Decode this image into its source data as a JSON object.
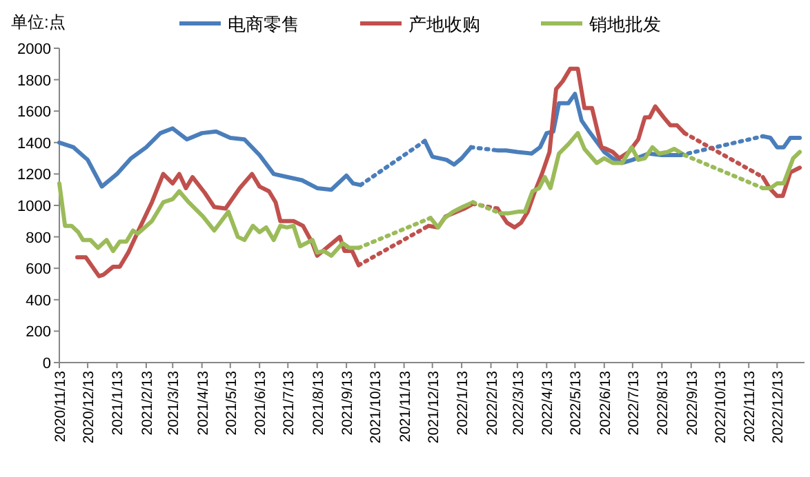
{
  "chart_data": {
    "type": "line",
    "annotations": [
      "单位:点"
    ],
    "xlim": [
      "2020-11-13",
      "2023-01-11"
    ],
    "xticks": [
      {
        "value": "2020-11-13",
        "label": "2020/11/13"
      },
      {
        "value": "2020-12-13",
        "label": "2020/12/13"
      },
      {
        "value": "2021-01-13",
        "label": "2021/1/13"
      },
      {
        "value": "2021-02-13",
        "label": "2021/2/13"
      },
      {
        "value": "2021-03-13",
        "label": "2021/3/13"
      },
      {
        "value": "2021-04-13",
        "label": "2021/4/13"
      },
      {
        "value": "2021-05-13",
        "label": "2021/5/13"
      },
      {
        "value": "2021-06-13",
        "label": "2021/6/13"
      },
      {
        "value": "2021-07-13",
        "label": "2021/7/13"
      },
      {
        "value": "2021-08-13",
        "label": "2021/8/13"
      },
      {
        "value": "2021-09-13",
        "label": "2021/9/13"
      },
      {
        "value": "2021-10-13",
        "label": "2021/10/13"
      },
      {
        "value": "2021-11-13",
        "label": "2021/11/13"
      },
      {
        "value": "2021-12-13",
        "label": "2021/12/13"
      },
      {
        "value": "2022-01-13",
        "label": "2022/1/13"
      },
      {
        "value": "2022-02-13",
        "label": "2022/2/13"
      },
      {
        "value": "2022-03-13",
        "label": "2022/3/13"
      },
      {
        "value": "2022-04-13",
        "label": "2022/4/13"
      },
      {
        "value": "2022-05-13",
        "label": "2022/5/13"
      },
      {
        "value": "2022-06-13",
        "label": "2022/6/13"
      },
      {
        "value": "2022-07-13",
        "label": "2022/7/13"
      },
      {
        "value": "2022-08-13",
        "label": "2022/8/13"
      },
      {
        "value": "2022-09-13",
        "label": "2022/9/13"
      },
      {
        "value": "2022-10-13",
        "label": "2022/10/13"
      },
      {
        "value": "2022-11-13",
        "label": "2022/11/13"
      },
      {
        "value": "2022-12-13",
        "label": "2022/12/13"
      }
    ],
    "ylim": [
      0,
      2000
    ],
    "yticks": [
      0,
      200,
      400,
      600,
      800,
      1000,
      1200,
      1400,
      1600,
      1800,
      2000
    ],
    "grid": false,
    "legend": "top",
    "marker": "none",
    "series": [
      {
        "name": "电商零售",
        "color": "#4a7ebb",
        "line_style": "solid",
        "x": [
          "2020-11-13",
          "2020-11-28",
          "2020-12-13",
          "2020-12-28",
          "2021-01-13",
          "2021-01-28",
          "2021-02-13",
          "2021-02-28",
          "2021-03-13",
          "2021-03-28",
          "2021-04-13",
          "2021-04-28",
          "2021-05-13",
          "2021-05-28",
          "2021-06-13",
          "2021-06-28",
          "2021-07-13",
          "2021-07-28",
          "2021-08-13",
          "2021-08-28",
          "2021-09-13",
          "2021-09-20",
          "2021-09-28"
        ],
        "values": [
          1400,
          1370,
          1290,
          1120,
          1200,
          1300,
          1370,
          1460,
          1490,
          1420,
          1460,
          1470,
          1430,
          1420,
          1320,
          1200,
          1180,
          1160,
          1110,
          1100,
          1190,
          1140,
          1130
        ]
      },
      {
        "name": "产地收购",
        "color": "#c0504d",
        "line_style": "solid",
        "x": [
          "2020-12-02",
          "2020-12-11",
          "2020-12-25",
          "2020-12-30",
          "2021-01-09",
          "2021-01-16",
          "2021-01-25",
          "2021-02-04",
          "2021-02-19",
          "2021-03-03",
          "2021-03-13",
          "2021-03-20",
          "2021-03-27",
          "2021-04-03",
          "2021-04-16",
          "2021-04-26",
          "2021-05-08",
          "2021-05-23",
          "2021-06-05",
          "2021-06-13",
          "2021-06-23",
          "2021-06-30",
          "2021-07-05",
          "2021-07-19",
          "2021-07-29",
          "2021-08-08",
          "2021-08-13",
          "2021-08-23",
          "2021-09-06",
          "2021-09-11",
          "2021-09-19",
          "2021-09-26"
        ],
        "values": [
          670,
          670,
          550,
          560,
          610,
          610,
          700,
          830,
          1020,
          1200,
          1140,
          1200,
          1110,
          1180,
          1080,
          990,
          980,
          1110,
          1200,
          1120,
          1090,
          1020,
          900,
          900,
          870,
          760,
          680,
          730,
          800,
          710,
          710,
          620
        ]
      },
      {
        "name": "销地批发",
        "color": "#9bbb59",
        "line_style": "solid",
        "x": [
          "2020-11-13",
          "2020-11-19",
          "2020-11-26",
          "2020-12-03",
          "2020-12-08",
          "2020-12-16",
          "2020-12-24",
          "2021-01-02",
          "2021-01-09",
          "2021-01-16",
          "2021-01-23",
          "2021-01-30",
          "2021-02-04",
          "2021-02-19",
          "2021-03-03",
          "2021-03-13",
          "2021-03-20",
          "2021-03-30",
          "2021-04-14",
          "2021-04-26",
          "2021-05-11",
          "2021-05-21",
          "2021-05-28",
          "2021-06-06",
          "2021-06-13",
          "2021-06-20",
          "2021-06-28",
          "2021-07-05",
          "2021-07-12",
          "2021-07-19",
          "2021-07-26",
          "2021-08-08",
          "2021-08-13",
          "2021-08-20",
          "2021-08-28",
          "2021-09-09",
          "2021-09-16",
          "2021-09-26"
        ],
        "values": [
          1140,
          870,
          870,
          830,
          780,
          780,
          730,
          780,
          710,
          770,
          770,
          840,
          820,
          900,
          1020,
          1040,
          1090,
          1020,
          930,
          840,
          960,
          800,
          780,
          870,
          830,
          860,
          780,
          870,
          860,
          870,
          740,
          780,
          700,
          710,
          680,
          760,
          730,
          730
        ]
      },
      {
        "color": "#4a7ebb",
        "line_style": "solid",
        "x": [
          "2021-12-05",
          "2021-12-13",
          "2021-12-28",
          "2022-01-05",
          "2022-01-13",
          "2022-01-23"
        ],
        "values": [
          1410,
          1310,
          1290,
          1260,
          1300,
          1370
        ]
      },
      {
        "color": "#4a7ebb",
        "line_style": "solid",
        "x": [
          "2022-02-20",
          "2022-03-01",
          "2022-03-13",
          "2022-03-28",
          "2022-04-06",
          "2022-04-13",
          "2022-04-20",
          "2022-04-26",
          "2022-05-06",
          "2022-05-13",
          "2022-05-20",
          "2022-05-28",
          "2022-06-13",
          "2022-06-22",
          "2022-07-02",
          "2022-07-13",
          "2022-07-30",
          "2022-08-13",
          "2022-08-29",
          "2022-09-02"
        ],
        "values": [
          1350,
          1350,
          1340,
          1330,
          1370,
          1460,
          1470,
          1650,
          1650,
          1710,
          1540,
          1470,
          1340,
          1300,
          1270,
          1290,
          1330,
          1320,
          1320,
          1320
        ]
      },
      {
        "color": "#4a7ebb",
        "line_style": "solid",
        "x": [
          "2022-11-28",
          "2022-12-06",
          "2022-12-13",
          "2022-12-20",
          "2022-12-27",
          "2023-01-06"
        ],
        "values": [
          1440,
          1430,
          1370,
          1370,
          1430,
          1430
        ]
      },
      {
        "color": "#c0504d",
        "line_style": "solid",
        "x": [
          "2021-12-09",
          "2021-12-19",
          "2021-12-27",
          "2022-01-16",
          "2022-01-25"
        ],
        "values": [
          870,
          860,
          930,
          980,
          1010
        ]
      },
      {
        "color": "#c0504d",
        "line_style": "solid",
        "x": [
          "2022-02-20",
          "2022-03-02",
          "2022-03-10",
          "2022-03-17",
          "2022-03-24",
          "2022-03-31",
          "2022-04-08",
          "2022-04-16",
          "2022-04-23",
          "2022-04-30",
          "2022-05-08",
          "2022-05-16",
          "2022-05-23",
          "2022-05-31",
          "2022-06-10",
          "2022-06-15",
          "2022-06-22",
          "2022-06-29",
          "2022-07-09",
          "2022-07-19",
          "2022-07-26",
          "2022-07-31",
          "2022-08-06",
          "2022-08-15",
          "2022-08-22",
          "2022-08-29",
          "2022-09-06"
        ],
        "values": [
          980,
          890,
          860,
          890,
          960,
          1080,
          1200,
          1340,
          1740,
          1790,
          1870,
          1870,
          1620,
          1620,
          1370,
          1360,
          1340,
          1300,
          1340,
          1420,
          1560,
          1560,
          1630,
          1560,
          1510,
          1510,
          1460
        ]
      },
      {
        "color": "#c0504d",
        "line_style": "solid",
        "x": [
          "2022-11-28",
          "2022-12-05",
          "2022-12-13",
          "2022-12-19",
          "2022-12-27",
          "2023-01-06"
        ],
        "values": [
          1180,
          1110,
          1060,
          1060,
          1210,
          1240
        ]
      },
      {
        "color": "#9bbb59",
        "line_style": "solid",
        "x": [
          "2021-12-11",
          "2021-12-19",
          "2021-12-26",
          "2022-01-04",
          "2022-01-14",
          "2022-01-25"
        ],
        "values": [
          920,
          860,
          920,
          960,
          990,
          1020
        ]
      },
      {
        "color": "#9bbb59",
        "line_style": "solid",
        "x": [
          "2022-02-23",
          "2022-03-04",
          "2022-03-14",
          "2022-03-21",
          "2022-03-29",
          "2022-04-05",
          "2022-04-11",
          "2022-04-17",
          "2022-04-26",
          "2022-05-06",
          "2022-05-16",
          "2022-05-23",
          "2022-06-05",
          "2022-06-13",
          "2022-06-22",
          "2022-07-02",
          "2022-07-12",
          "2022-07-19",
          "2022-07-26",
          "2022-08-03",
          "2022-08-10",
          "2022-08-19",
          "2022-08-26",
          "2022-09-06"
        ],
        "values": [
          950,
          950,
          960,
          960,
          1090,
          1110,
          1180,
          1110,
          1330,
          1390,
          1460,
          1360,
          1270,
          1300,
          1270,
          1270,
          1370,
          1290,
          1300,
          1370,
          1330,
          1340,
          1360,
          1320
        ]
      },
      {
        "color": "#9bbb59",
        "line_style": "solid",
        "x": [
          "2022-11-28",
          "2022-12-06",
          "2022-12-13",
          "2022-12-20",
          "2022-12-30",
          "2023-01-06"
        ],
        "values": [
          1110,
          1110,
          1140,
          1140,
          1300,
          1340
        ]
      },
      {
        "color": "#4a7ebb",
        "line_style": "dotted",
        "x": [
          "2021-09-28",
          "2021-12-05"
        ],
        "values": [
          1130,
          1410
        ]
      },
      {
        "color": "#4a7ebb",
        "line_style": "dotted",
        "x": [
          "2022-01-23",
          "2022-02-20"
        ],
        "values": [
          1370,
          1350
        ]
      },
      {
        "color": "#4a7ebb",
        "line_style": "dotted",
        "x": [
          "2022-09-02",
          "2022-11-28"
        ],
        "values": [
          1320,
          1440
        ]
      },
      {
        "color": "#c0504d",
        "line_style": "dotted",
        "x": [
          "2021-09-26",
          "2021-12-09"
        ],
        "values": [
          620,
          870
        ]
      },
      {
        "color": "#c0504d",
        "line_style": "dotted",
        "x": [
          "2022-01-25",
          "2022-02-20"
        ],
        "values": [
          1010,
          980
        ]
      },
      {
        "color": "#c0504d",
        "line_style": "dotted",
        "x": [
          "2022-09-06",
          "2022-11-28"
        ],
        "values": [
          1460,
          1180
        ]
      },
      {
        "color": "#9bbb59",
        "line_style": "dotted",
        "x": [
          "2021-09-26",
          "2021-12-11"
        ],
        "values": [
          730,
          920
        ]
      },
      {
        "color": "#9bbb59",
        "line_style": "dotted",
        "x": [
          "2022-01-25",
          "2022-02-23"
        ],
        "values": [
          1020,
          950
        ]
      },
      {
        "color": "#9bbb59",
        "line_style": "dotted",
        "x": [
          "2022-09-06",
          "2022-11-28"
        ],
        "values": [
          1320,
          1110
        ]
      }
    ]
  }
}
